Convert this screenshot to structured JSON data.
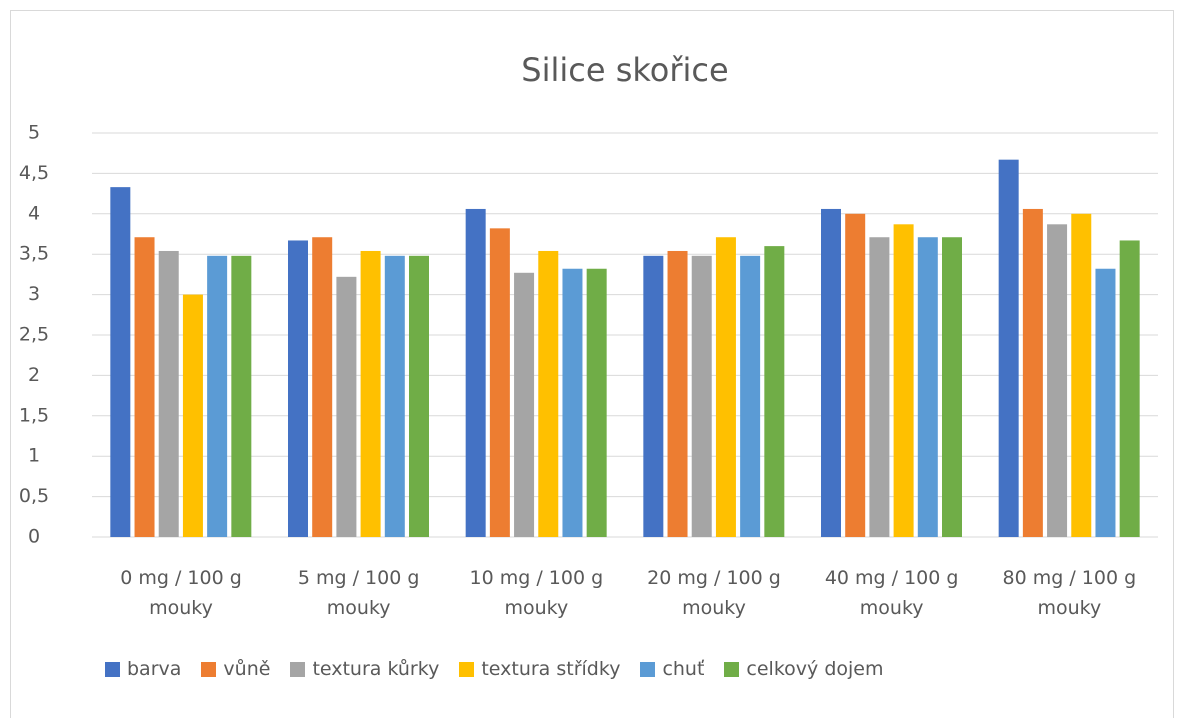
{
  "chart_data": {
    "type": "bar",
    "title": "Silice skořice",
    "categories": [
      "0 mg / 100 g mouky",
      "5 mg / 100 g mouky",
      "10 mg / 100 g mouky",
      "20 mg / 100 g mouky",
      "40 mg / 100 g mouky",
      "80 mg / 100 g mouky"
    ],
    "series": [
      {
        "name": "barva",
        "color": "#4472c4",
        "values": [
          4.33,
          3.67,
          4.06,
          3.48,
          4.06,
          4.67
        ]
      },
      {
        "name": "vůně",
        "color": "#ed7d31",
        "values": [
          3.71,
          3.71,
          3.82,
          3.54,
          4.0,
          4.06
        ]
      },
      {
        "name": "textura kůrky",
        "color": "#a5a5a5",
        "values": [
          3.54,
          3.22,
          3.27,
          3.48,
          3.71,
          3.87
        ]
      },
      {
        "name": "textura střídky",
        "color": "#ffc000",
        "values": [
          3.0,
          3.54,
          3.54,
          3.71,
          3.87,
          4.0
        ]
      },
      {
        "name": "chuť",
        "color": "#5b9bd5",
        "values": [
          3.48,
          3.48,
          3.32,
          3.48,
          3.71,
          3.32
        ]
      },
      {
        "name": "celkový dojem",
        "color": "#70ad47",
        "values": [
          3.48,
          3.48,
          3.32,
          3.6,
          3.71,
          3.67
        ]
      }
    ],
    "ylim": [
      0,
      5
    ],
    "yticks": [
      0,
      {
        "value": 0.5,
        "label": "0,5"
      },
      1,
      {
        "value": 1.5,
        "label": "1,5"
      },
      2,
      {
        "value": 2.5,
        "label": "2,5"
      },
      3,
      {
        "value": 3.5,
        "label": "3,5"
      },
      4,
      {
        "value": 4.5,
        "label": "4,5"
      },
      5
    ],
    "grid": true,
    "legend": "bottom"
  }
}
